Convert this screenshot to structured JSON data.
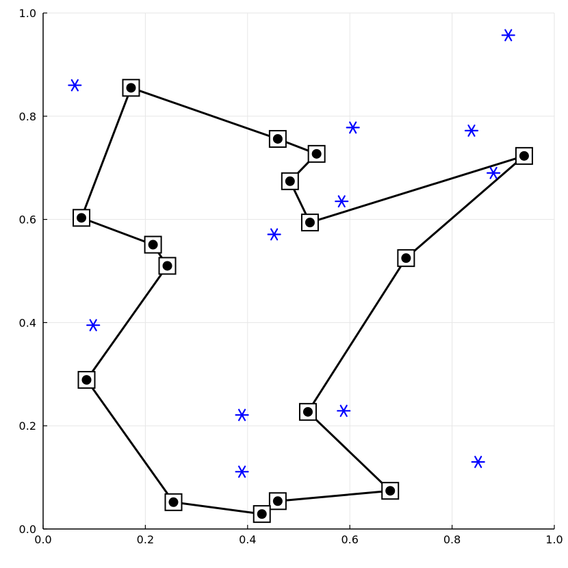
{
  "chart_data": {
    "type": "scatter",
    "title": "",
    "xlabel": "",
    "ylabel": "",
    "xlim": [
      0.0,
      1.0
    ],
    "ylim": [
      0.0,
      1.0
    ],
    "grid": true,
    "legend": "none",
    "x_ticks": [
      {
        "value": 0.0,
        "label": "0.0"
      },
      {
        "value": 0.2,
        "label": "0.2"
      },
      {
        "value": 0.4,
        "label": "0.4"
      },
      {
        "value": 0.6,
        "label": "0.6"
      },
      {
        "value": 0.8,
        "label": "0.8"
      },
      {
        "value": 1.0,
        "label": "1.0"
      }
    ],
    "y_ticks": [
      {
        "value": 0.0,
        "label": "0.0"
      },
      {
        "value": 0.2,
        "label": "0.2"
      },
      {
        "value": 0.4,
        "label": "0.4"
      },
      {
        "value": 0.6,
        "label": "0.6"
      },
      {
        "value": 0.8,
        "label": "0.8"
      },
      {
        "value": 1.0,
        "label": "1.0"
      }
    ],
    "series": [
      {
        "kind": "path",
        "color": "#000000",
        "marker": "circle-in-square",
        "points": [
          [
            0.172,
            0.855
          ],
          [
            0.459,
            0.756
          ],
          [
            0.535,
            0.727
          ],
          [
            0.483,
            0.674
          ],
          [
            0.522,
            0.594
          ],
          [
            0.941,
            0.723
          ],
          [
            0.71,
            0.525
          ],
          [
            0.518,
            0.227
          ],
          [
            0.679,
            0.074
          ],
          [
            0.459,
            0.054
          ],
          [
            0.428,
            0.029
          ],
          [
            0.255,
            0.052
          ],
          [
            0.085,
            0.289
          ],
          [
            0.243,
            0.51
          ],
          [
            0.215,
            0.551
          ],
          [
            0.075,
            0.603
          ],
          [
            0.172,
            0.855
          ]
        ]
      },
      {
        "kind": "scatter",
        "color": "#0000ff",
        "marker": "asterisk",
        "points": [
          [
            0.062,
            0.86
          ],
          [
            0.606,
            0.778
          ],
          [
            0.838,
            0.772
          ],
          [
            0.91,
            0.957
          ],
          [
            0.881,
            0.69
          ],
          [
            0.584,
            0.635
          ],
          [
            0.452,
            0.571
          ],
          [
            0.098,
            0.395
          ],
          [
            0.389,
            0.221
          ],
          [
            0.588,
            0.229
          ],
          [
            0.389,
            0.111
          ],
          [
            0.851,
            0.13
          ]
        ]
      }
    ]
  }
}
